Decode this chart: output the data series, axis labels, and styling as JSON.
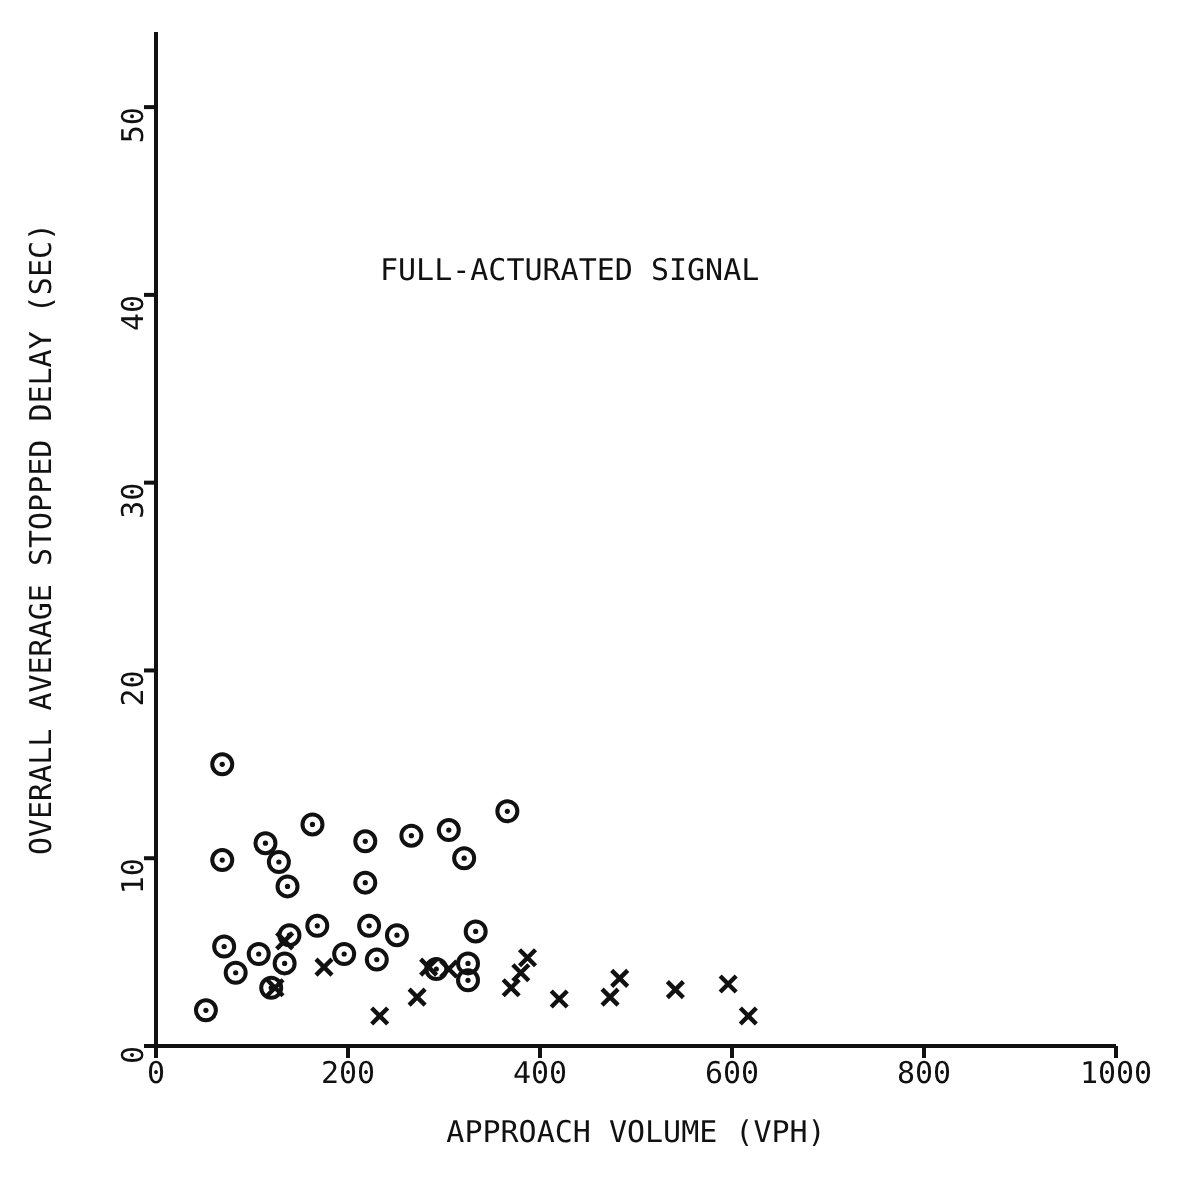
{
  "chart_data": {
    "type": "scatter",
    "xlabel": "APPROACH VOLUME (VPH)",
    "ylabel": "OVERALL AVERAGE STOPPED DELAY (SEC)",
    "annotations": [
      "FULL-ACTURATED SIGNAL"
    ],
    "xlim": [
      0,
      1000
    ],
    "xticks": [
      0,
      200,
      400,
      600,
      800,
      1000
    ],
    "ylim": [
      0,
      54
    ],
    "yticks": [
      0,
      10,
      20,
      30,
      40,
      50
    ],
    "grid": false,
    "legend": false,
    "series": [
      {
        "marker": "circle",
        "color": "#111111",
        "x": [
          69,
          366,
          163,
          218,
          266,
          305,
          321,
          69,
          114,
          128,
          137,
          218,
          52,
          71,
          333,
          222,
          168,
          251,
          139,
          83,
          107,
          134,
          196,
          230,
          325,
          120,
          292,
          325
        ],
        "values": [
          15.0,
          12.5,
          11.8,
          10.9,
          11.2,
          11.5,
          10.0,
          9.9,
          10.8,
          9.8,
          8.5,
          8.7,
          1.9,
          5.3,
          6.1,
          6.4,
          6.4,
          5.9,
          5.9,
          3.9,
          4.9,
          4.4,
          4.9,
          4.6,
          4.4,
          3.1,
          4.1,
          3.5
        ]
      },
      {
        "marker": "cross",
        "color": "#111111",
        "x": [
          387,
          380,
          370,
          420,
          483,
          473,
          541,
          596,
          617,
          233,
          272,
          305,
          284,
          175,
          134,
          124
        ],
        "values": [
          4.7,
          3.9,
          3.1,
          2.5,
          3.6,
          2.6,
          3.0,
          3.3,
          1.6,
          1.6,
          2.6,
          4.1,
          4.2,
          4.2,
          5.6,
          3.1
        ]
      }
    ]
  }
}
